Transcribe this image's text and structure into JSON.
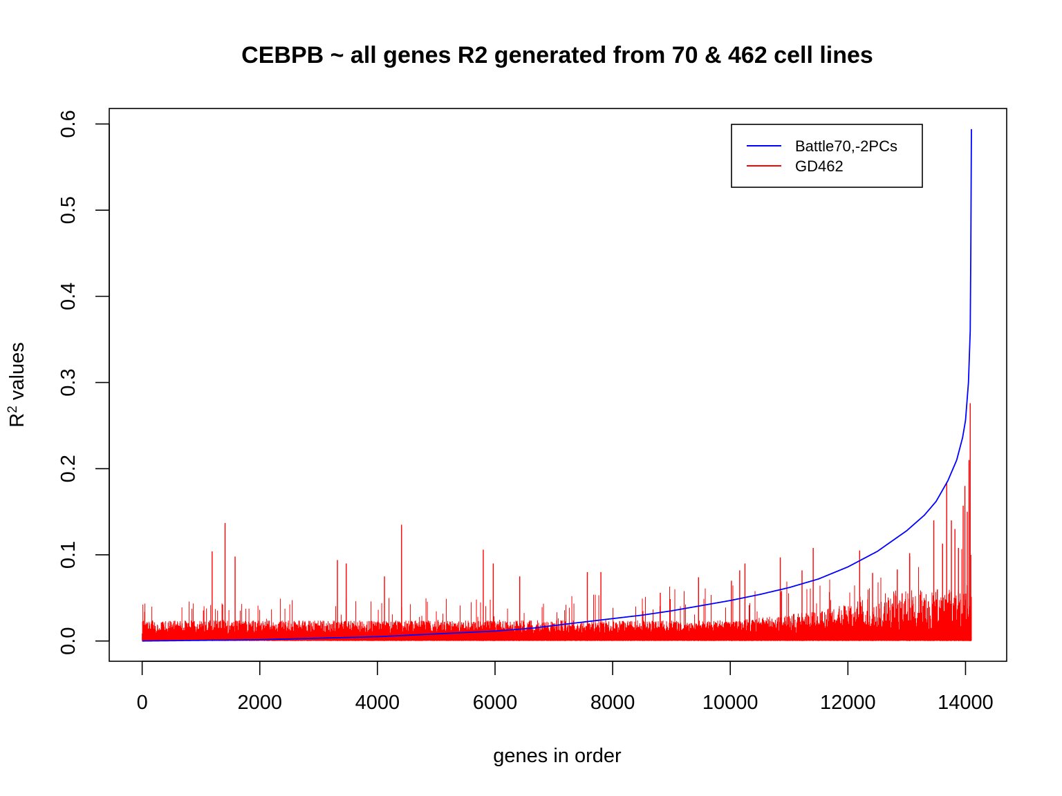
{
  "chart_data": {
    "type": "line",
    "title": "CEBPB ~ all genes R2 generated from 70 & 462 cell lines",
    "xlabel": "genes in order",
    "ylabel_main": "R",
    "ylabel_sup": "2",
    "ylabel_rest": " values",
    "xlim": [
      -560,
      14700
    ],
    "ylim": [
      -0.0235,
      0.618
    ],
    "x_ticks": [
      0,
      2000,
      4000,
      6000,
      8000,
      10000,
      12000,
      14000
    ],
    "x_tick_labels": [
      "0",
      "2000",
      "4000",
      "6000",
      "8000",
      "10000",
      "12000",
      "14000"
    ],
    "y_ticks": [
      0.0,
      0.1,
      0.2,
      0.3,
      0.4,
      0.5,
      0.6
    ],
    "y_tick_labels": [
      "0.0",
      "0.1",
      "0.2",
      "0.3",
      "0.4",
      "0.5",
      "0.6"
    ],
    "grid": false,
    "legend_position": "top-right",
    "n_genes": 14100,
    "series": [
      {
        "name": "Battle70,-2PCs",
        "color": "#0000ff",
        "style": "sorted-curve",
        "x": [
          0,
          2000,
          4000,
          6000,
          6650,
          7000,
          7500,
          8000,
          8500,
          9000,
          9500,
          10000,
          10500,
          11000,
          11500,
          12000,
          12500,
          13000,
          13300,
          13500,
          13700,
          13850,
          13950,
          14000,
          14050,
          14080,
          14090,
          14100
        ],
        "y": [
          0.0,
          0.0015,
          0.005,
          0.0115,
          0.015,
          0.018,
          0.022,
          0.026,
          0.03,
          0.035,
          0.041,
          0.047,
          0.054,
          0.062,
          0.072,
          0.086,
          0.104,
          0.128,
          0.146,
          0.162,
          0.186,
          0.21,
          0.236,
          0.256,
          0.3,
          0.36,
          0.45,
          0.594
        ]
      },
      {
        "name": "GD462",
        "color": "#ff0000",
        "style": "dense-spikes",
        "baseline_max": 0.024,
        "peaks_x": [
          1190,
          1410,
          1580,
          3320,
          3470,
          4120,
          4410,
          5800,
          5970,
          6420,
          7570,
          7800,
          8810,
          9460,
          10020,
          10160,
          10250,
          10850,
          11220,
          11410,
          12200,
          12420,
          12840,
          13050,
          13460,
          13610,
          13680,
          13760,
          13820,
          13880,
          13960,
          13990,
          14030,
          14060,
          14080,
          14090
        ],
        "peaks_y": [
          0.104,
          0.137,
          0.098,
          0.094,
          0.09,
          0.075,
          0.135,
          0.106,
          0.09,
          0.075,
          0.08,
          0.08,
          0.056,
          0.074,
          0.07,
          0.082,
          0.09,
          0.097,
          0.082,
          0.108,
          0.105,
          0.079,
          0.083,
          0.102,
          0.14,
          0.113,
          0.183,
          0.14,
          0.13,
          0.108,
          0.157,
          0.18,
          0.15,
          0.21,
          0.276,
          0.1
        ]
      }
    ]
  }
}
